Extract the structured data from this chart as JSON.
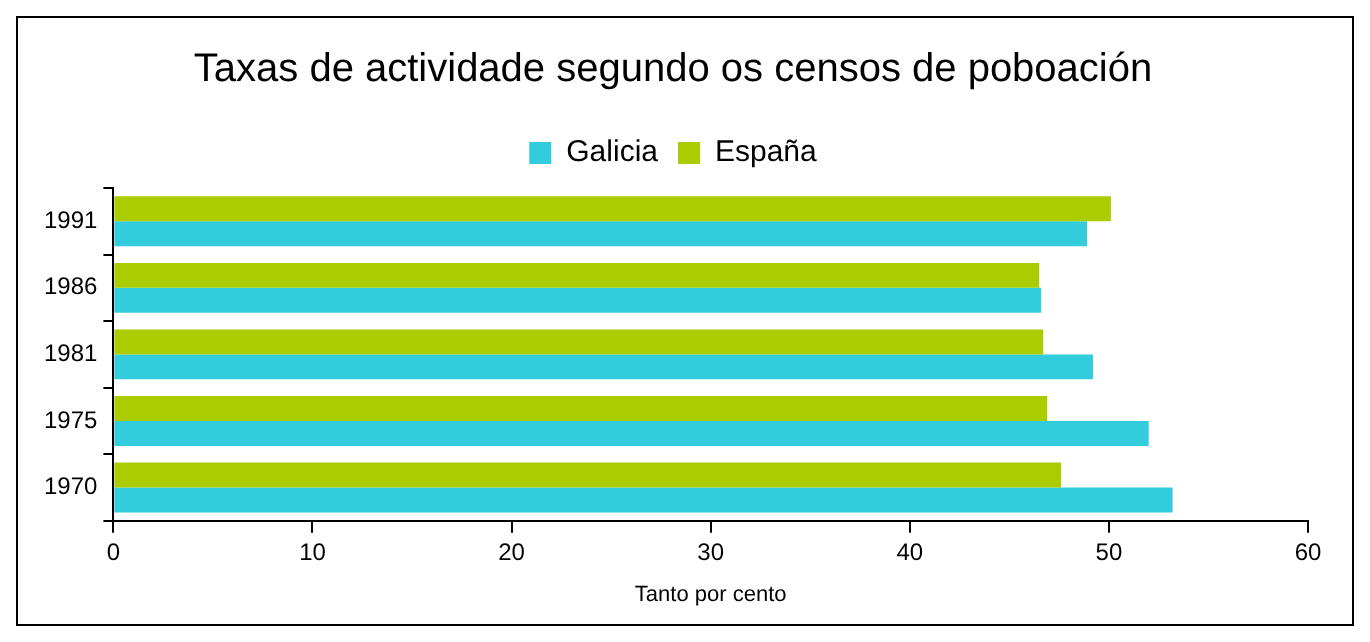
{
  "chart_data": {
    "type": "bar",
    "orientation": "horizontal",
    "title": "Taxas de actividade segundo os censos de poboación",
    "xlabel": "Tanto por cento",
    "categories": [
      "1991",
      "1986",
      "1981",
      "1975",
      "1970"
    ],
    "series": [
      {
        "name": "Galicia",
        "color": "#33ccdd",
        "values": [
          48.9,
          46.6,
          49.2,
          52.0,
          53.2
        ]
      },
      {
        "name": "España",
        "color": "#aacc00",
        "values": [
          50.1,
          46.5,
          46.7,
          46.9,
          47.6
        ]
      }
    ],
    "xlim": [
      0,
      60
    ],
    "xticks": [
      0,
      10,
      20,
      30,
      40,
      50,
      60
    ],
    "grid": false,
    "legend": "top"
  }
}
